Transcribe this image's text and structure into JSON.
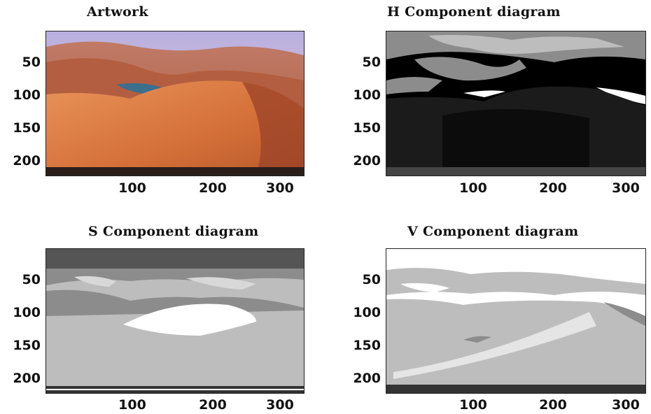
{
  "figure": {
    "panels": [
      {
        "title": "Artwork",
        "image": "color-desert-dune-photo",
        "yticks": [
          "50",
          "100",
          "150",
          "200"
        ],
        "xticks": [
          "100",
          "200",
          "300"
        ]
      },
      {
        "title": "H Component diagram",
        "image": "hue-channel-grayscale",
        "yticks": [
          "50",
          "100",
          "150",
          "200"
        ],
        "xticks": [
          "100",
          "200",
          "300"
        ]
      },
      {
        "title": "S Component diagram",
        "image": "saturation-channel-grayscale",
        "yticks": [
          "50",
          "100",
          "150",
          "200"
        ],
        "xticks": [
          "100",
          "200",
          "300"
        ]
      },
      {
        "title": "V Component diagram",
        "image": "value-channel-grayscale",
        "yticks": [
          "50",
          "100",
          "150",
          "200"
        ],
        "xticks": [
          "100",
          "200",
          "300"
        ]
      }
    ],
    "colors": {
      "sky": "#c8c4e6",
      "dune_orange": "#d9783f",
      "dune_shadow": "#8a3a2a",
      "lake": "#3b6f8c",
      "black": "#000000",
      "dark_gray": "#555555",
      "mid_gray": "#8c8c8c",
      "light_gray": "#bdbdbd",
      "white": "#ffffff"
    }
  }
}
